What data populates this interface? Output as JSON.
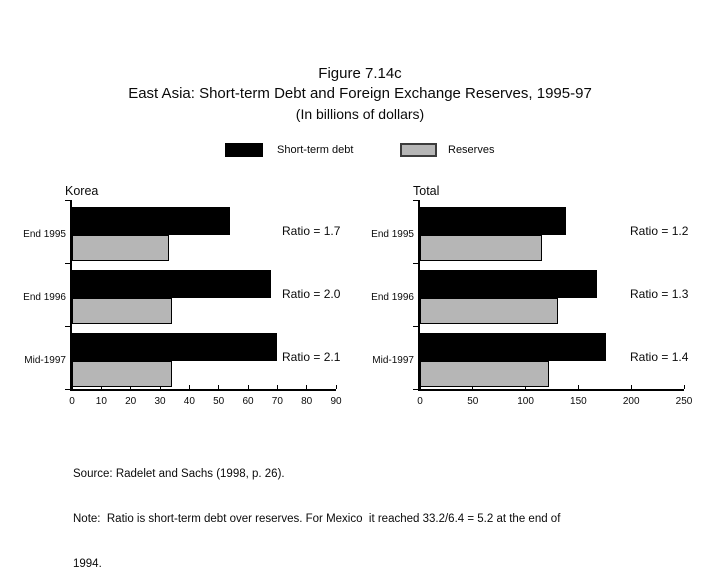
{
  "title": {
    "line1": "Figure 7.14c",
    "line2": "East Asia: Short-term Debt and Foreign Exchange Reserves, 1995-97",
    "line3": "(In billions of dollars)"
  },
  "legend": [
    {
      "label": "Short-term debt",
      "color": "#000000"
    },
    {
      "label": "Reserves",
      "color": "#b6b6b6"
    }
  ],
  "colors": {
    "short_term_debt": "#000000",
    "reserves": "#b6b6b6",
    "axis": "#000000",
    "text": "#0a0a0a",
    "background": "#ffffff"
  },
  "chart_data": [
    {
      "type": "bar",
      "orientation": "horizontal",
      "title": "Korea",
      "categories": [
        "End 1995",
        "End 1996",
        "Mid-1997"
      ],
      "series": [
        {
          "name": "Short-term debt",
          "values": [
            54,
            68,
            70
          ]
        },
        {
          "name": "Reserves",
          "values": [
            33,
            34,
            34
          ]
        }
      ],
      "ratios": [
        "Ratio = 1.7",
        "Ratio = 2.0",
        "Ratio = 2.1"
      ],
      "xlim": [
        0,
        90
      ],
      "xticks": [
        0,
        10,
        20,
        30,
        40,
        50,
        60,
        70,
        80,
        90
      ],
      "grid": false,
      "legend_position": "top"
    },
    {
      "type": "bar",
      "orientation": "horizontal",
      "title": "Total",
      "categories": [
        "End 1995",
        "End 1996",
        "Mid-1997"
      ],
      "series": [
        {
          "name": "Short-term debt",
          "values": [
            138,
            168,
            176
          ]
        },
        {
          "name": "Reserves",
          "values": [
            116,
            131,
            122
          ]
        }
      ],
      "ratios": [
        "Ratio = 1.2",
        "Ratio = 1.3",
        "Ratio = 1.4"
      ],
      "xlim": [
        0,
        250
      ],
      "xticks": [
        0,
        50,
        100,
        150,
        200,
        250
      ],
      "grid": false,
      "legend_position": "top"
    }
  ],
  "source": {
    "lines": [
      "Source: Radelet and Sachs (1998, p. 26).",
      "Note:  Ratio is short-term debt over reserves. For Mexico  it reached 33.2/6.4 = 5.2 at the end of",
      "1994."
    ]
  }
}
